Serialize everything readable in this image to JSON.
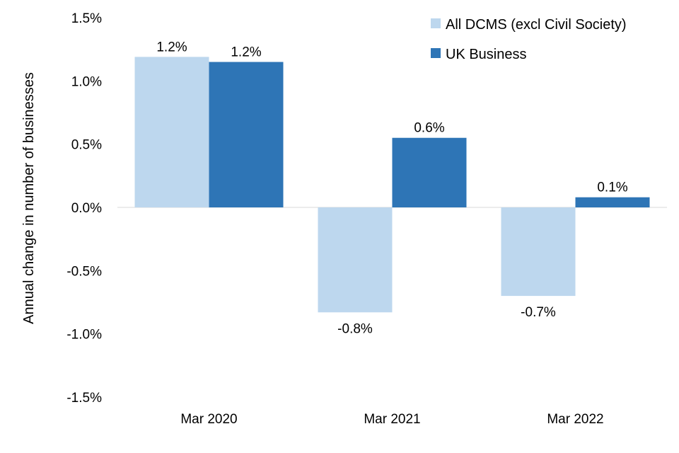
{
  "chart_data": {
    "type": "bar",
    "categories": [
      "Mar 2020",
      "Mar 2021",
      "Mar 2022"
    ],
    "series": [
      {
        "name": "All DCMS (excl Civil Society)",
        "values": [
          1.19,
          -0.83,
          -0.7
        ],
        "labels": [
          "1.2%",
          "-0.8%",
          "-0.7%"
        ],
        "color": "#bdd7ee"
      },
      {
        "name": "UK Business",
        "values": [
          1.15,
          0.55,
          0.08
        ],
        "labels": [
          "1.2%",
          "0.6%",
          "0.1%"
        ],
        "color": "#2e75b6"
      }
    ],
    "ylabel": "Annual change in number of businesses",
    "ylim": [
      -1.5,
      1.5
    ],
    "yticks": [
      1.5,
      1.0,
      0.5,
      0.0,
      -0.5,
      -1.0,
      -1.5
    ],
    "ytick_labels": [
      "1.5%",
      "1.0%",
      "0.5%",
      "0.0%",
      "-0.5%",
      "-1.0%",
      "-1.5%"
    ],
    "grid": false,
    "legend_position": "top-right"
  }
}
